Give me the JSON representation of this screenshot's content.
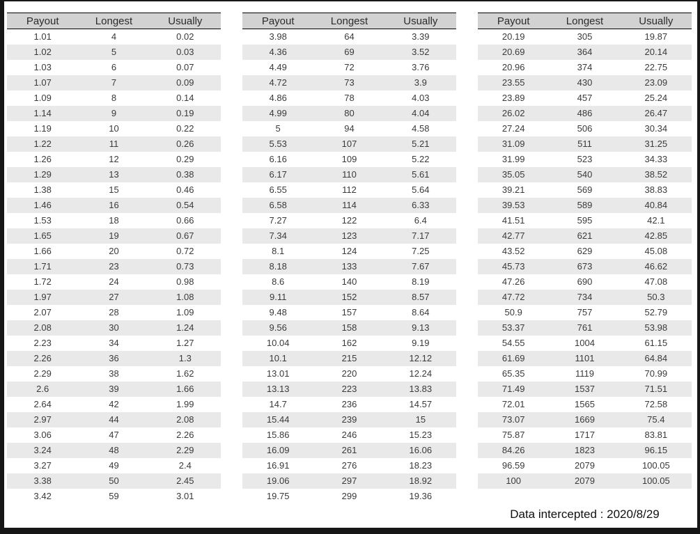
{
  "colors": {
    "header-bg": "#d2d2d2",
    "stripe-bg": "#e9e9e9",
    "frame": "#161616",
    "text": "#3a3a3a"
  },
  "chart_data": {
    "type": "table",
    "columns": [
      "Payout",
      "Longest",
      "Usually"
    ],
    "footer": "Data intercepted : 2020/8/29",
    "tables": [
      {
        "rows": [
          [
            "1.01",
            "4",
            "0.02"
          ],
          [
            "1.02",
            "5",
            "0.03"
          ],
          [
            "1.03",
            "6",
            "0.07"
          ],
          [
            "1.07",
            "7",
            "0.09"
          ],
          [
            "1.09",
            "8",
            "0.14"
          ],
          [
            "1.14",
            "9",
            "0.19"
          ],
          [
            "1.19",
            "10",
            "0.22"
          ],
          [
            "1.22",
            "11",
            "0.26"
          ],
          [
            "1.26",
            "12",
            "0.29"
          ],
          [
            "1.29",
            "13",
            "0.38"
          ],
          [
            "1.38",
            "15",
            "0.46"
          ],
          [
            "1.46",
            "16",
            "0.54"
          ],
          [
            "1.53",
            "18",
            "0.66"
          ],
          [
            "1.65",
            "19",
            "0.67"
          ],
          [
            "1.66",
            "20",
            "0.72"
          ],
          [
            "1.71",
            "23",
            "0.73"
          ],
          [
            "1.72",
            "24",
            "0.98"
          ],
          [
            "1.97",
            "27",
            "1.08"
          ],
          [
            "2.07",
            "28",
            "1.09"
          ],
          [
            "2.08",
            "30",
            "1.24"
          ],
          [
            "2.23",
            "34",
            "1.27"
          ],
          [
            "2.26",
            "36",
            "1.3"
          ],
          [
            "2.29",
            "38",
            "1.62"
          ],
          [
            "2.6",
            "39",
            "1.66"
          ],
          [
            "2.64",
            "42",
            "1.99"
          ],
          [
            "2.97",
            "44",
            "2.08"
          ],
          [
            "3.06",
            "47",
            "2.26"
          ],
          [
            "3.24",
            "48",
            "2.29"
          ],
          [
            "3.27",
            "49",
            "2.4"
          ],
          [
            "3.38",
            "50",
            "2.45"
          ],
          [
            "3.42",
            "59",
            "3.01"
          ]
        ]
      },
      {
        "rows": [
          [
            "3.98",
            "64",
            "3.39"
          ],
          [
            "4.36",
            "69",
            "3.52"
          ],
          [
            "4.49",
            "72",
            "3.76"
          ],
          [
            "4.72",
            "73",
            "3.9"
          ],
          [
            "4.86",
            "78",
            "4.03"
          ],
          [
            "4.99",
            "80",
            "4.04"
          ],
          [
            "5",
            "94",
            "4.58"
          ],
          [
            "5.53",
            "107",
            "5.21"
          ],
          [
            "6.16",
            "109",
            "5.22"
          ],
          [
            "6.17",
            "110",
            "5.61"
          ],
          [
            "6.55",
            "112",
            "5.64"
          ],
          [
            "6.58",
            "114",
            "6.33"
          ],
          [
            "7.27",
            "122",
            "6.4"
          ],
          [
            "7.34",
            "123",
            "7.17"
          ],
          [
            "8.1",
            "124",
            "7.25"
          ],
          [
            "8.18",
            "133",
            "7.67"
          ],
          [
            "8.6",
            "140",
            "8.19"
          ],
          [
            "9.11",
            "152",
            "8.57"
          ],
          [
            "9.48",
            "157",
            "8.64"
          ],
          [
            "9.56",
            "158",
            "9.13"
          ],
          [
            "10.04",
            "162",
            "9.19"
          ],
          [
            "10.1",
            "215",
            "12.12"
          ],
          [
            "13.01",
            "220",
            "12.24"
          ],
          [
            "13.13",
            "223",
            "13.83"
          ],
          [
            "14.7",
            "236",
            "14.57"
          ],
          [
            "15.44",
            "239",
            "15"
          ],
          [
            "15.86",
            "246",
            "15.23"
          ],
          [
            "16.09",
            "261",
            "16.06"
          ],
          [
            "16.91",
            "276",
            "18.23"
          ],
          [
            "19.06",
            "297",
            "18.92"
          ],
          [
            "19.75",
            "299",
            "19.36"
          ]
        ]
      },
      {
        "rows": [
          [
            "20.19",
            "305",
            "19.87"
          ],
          [
            "20.69",
            "364",
            "20.14"
          ],
          [
            "20.96",
            "374",
            "22.75"
          ],
          [
            "23.55",
            "430",
            "23.09"
          ],
          [
            "23.89",
            "457",
            "25.24"
          ],
          [
            "26.02",
            "486",
            "26.47"
          ],
          [
            "27.24",
            "506",
            "30.34"
          ],
          [
            "31.09",
            "511",
            "31.25"
          ],
          [
            "31.99",
            "523",
            "34.33"
          ],
          [
            "35.05",
            "540",
            "38.52"
          ],
          [
            "39.21",
            "569",
            "38.83"
          ],
          [
            "39.53",
            "589",
            "40.84"
          ],
          [
            "41.51",
            "595",
            "42.1"
          ],
          [
            "42.77",
            "621",
            "42.85"
          ],
          [
            "43.52",
            "629",
            "45.08"
          ],
          [
            "45.73",
            "673",
            "46.62"
          ],
          [
            "47.26",
            "690",
            "47.08"
          ],
          [
            "47.72",
            "734",
            "50.3"
          ],
          [
            "50.9",
            "757",
            "52.79"
          ],
          [
            "53.37",
            "761",
            "53.98"
          ],
          [
            "54.55",
            "1004",
            "61.15"
          ],
          [
            "61.69",
            "1101",
            "64.84"
          ],
          [
            "65.35",
            "1119",
            "70.99"
          ],
          [
            "71.49",
            "1537",
            "71.51"
          ],
          [
            "72.01",
            "1565",
            "72.58"
          ],
          [
            "73.07",
            "1669",
            "75.4"
          ],
          [
            "75.87",
            "1717",
            "83.81"
          ],
          [
            "84.26",
            "1823",
            "96.15"
          ],
          [
            "96.59",
            "2079",
            "100.05"
          ],
          [
            "100",
            "2079",
            "100.05"
          ]
        ]
      }
    ]
  }
}
